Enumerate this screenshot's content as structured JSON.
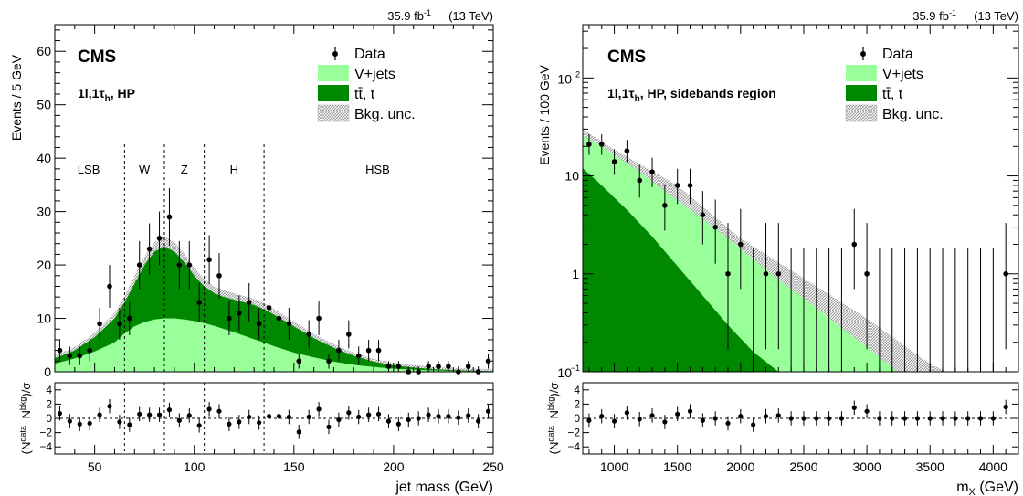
{
  "chart_data": [
    {
      "type": "histogram",
      "panel": "left",
      "lumi_label": "35.9 fb",
      "lumi_sup": "-1",
      "energy_label": "(13 TeV)",
      "experiment": "CMS",
      "category_label": "1l,1τ",
      "category_sub": "h",
      "category_suffix": ", HP",
      "ylabel": "Events / 5 GeV",
      "xlabel": "jet mass (GeV)",
      "ratio_ylabel": "(N",
      "xlim": [
        30,
        250
      ],
      "ylim": [
        0,
        65
      ],
      "x_ticks": [
        50,
        100,
        150,
        200,
        250
      ],
      "y_ticks": [
        0,
        10,
        20,
        30,
        40,
        50,
        60
      ],
      "ratio_ylim": [
        -5,
        5
      ],
      "ratio_ticks": [
        4,
        2,
        0,
        -2,
        -4
      ],
      "legend": {
        "data": "Data",
        "vjets": "V+jets",
        "ttbar": "tt̄, t",
        "unc": "Bkg. unc."
      },
      "region_boundaries": [
        65,
        85,
        105,
        135
      ],
      "regions": [
        {
          "label": "LSB",
          "x": 47
        },
        {
          "label": "W",
          "x": 75
        },
        {
          "label": "Z",
          "x": 95
        },
        {
          "label": "H",
          "x": 120
        },
        {
          "label": "HSB",
          "x": 192
        }
      ],
      "vjets_curve": {
        "x": [
          30,
          40,
          50,
          60,
          65,
          70,
          75,
          80,
          85,
          90,
          95,
          100,
          105,
          110,
          120,
          130,
          140,
          150,
          160,
          170,
          180,
          190,
          200,
          210,
          220,
          230,
          240,
          250
        ],
        "y": [
          1.5,
          2.5,
          3.8,
          5.5,
          7.2,
          8.5,
          9.3,
          9.8,
          10,
          10,
          9.8,
          9.5,
          9.1,
          8.6,
          7.4,
          6.1,
          4.8,
          3.6,
          2.7,
          1.9,
          1.3,
          0.9,
          0.6,
          0.4,
          0.25,
          0.15,
          0.1,
          0.05
        ]
      },
      "total_curve": {
        "x": [
          30,
          40,
          50,
          60,
          65,
          70,
          75,
          80,
          85,
          90,
          95,
          100,
          105,
          110,
          115,
          120,
          125,
          130,
          135,
          140,
          150,
          160,
          170,
          180,
          190,
          200,
          210,
          220,
          230,
          240,
          250
        ],
        "y": [
          2.5,
          4,
          6.5,
          10,
          13,
          16.5,
          20,
          22.5,
          23.5,
          22.5,
          20.5,
          18,
          16,
          14.7,
          14,
          13.5,
          13,
          12.5,
          11.7,
          10.7,
          8.5,
          6.3,
          4.5,
          3,
          1.9,
          1.2,
          0.8,
          0.5,
          0.3,
          0.2,
          0.1
        ]
      },
      "points": {
        "x": [
          32.5,
          37.5,
          42.5,
          47.5,
          52.5,
          57.5,
          62.5,
          67.5,
          72.5,
          77.5,
          82.5,
          87.5,
          92.5,
          97.5,
          102.5,
          107.5,
          112.5,
          117.5,
          122.5,
          127.5,
          132.5,
          137.5,
          142.5,
          147.5,
          152.5,
          157.5,
          162.5,
          167.5,
          172.5,
          177.5,
          182.5,
          187.5,
          192.5,
          197.5,
          202.5,
          207.5,
          212.5,
          217.5,
          222.5,
          227.5,
          232.5,
          237.5,
          242.5,
          247.5
        ],
        "y": [
          4,
          3,
          3,
          4,
          9,
          16,
          9,
          10,
          20,
          23,
          25,
          29,
          20,
          20,
          13,
          21,
          18,
          10,
          11,
          13,
          9,
          12,
          10,
          9,
          2,
          7,
          10,
          2,
          4,
          7,
          3,
          4,
          4,
          1,
          1,
          0,
          0,
          1,
          1,
          1,
          0,
          1,
          0,
          2
        ],
        "ratio": [
          0.7,
          -0.4,
          -0.8,
          -0.7,
          0.5,
          1.7,
          -0.5,
          -0.9,
          0.6,
          0.5,
          0.5,
          1.2,
          -0.3,
          0.4,
          -1.0,
          1.3,
          1.0,
          -0.8,
          -0.5,
          0.2,
          -0.6,
          0.3,
          0.3,
          0.2,
          -1.9,
          0.2,
          1.3,
          -1.2,
          -0.2,
          0.8,
          0.2,
          0.5,
          0.6,
          -0.4,
          -0.8,
          -0.2,
          0.0,
          0.5,
          0.3,
          0.3,
          0.1,
          0.4,
          -0.4,
          1.0
        ]
      }
    },
    {
      "type": "histogram",
      "panel": "right",
      "lumi_label": "35.9 fb",
      "lumi_sup": "-1",
      "energy_label": "(13 TeV)",
      "experiment": "CMS",
      "category_label": "1l,1τ",
      "category_sub": "h",
      "category_suffix": ", HP, sidebands region",
      "ylabel": "Events / 100 GeV",
      "xlabel": "m",
      "xlabel_sub": "X",
      "xlabel_suffix": " (GeV)",
      "xlim": [
        750,
        4200
      ],
      "ylim_log": [
        0.1,
        350
      ],
      "x_ticks": [
        1000,
        1500,
        2000,
        2500,
        3000,
        3500,
        4000
      ],
      "y_ticks_log": [
        {
          "v": 1,
          "label": "1"
        },
        {
          "v": 10,
          "label": "10"
        }
      ],
      "y_tick_pow": [
        {
          "v": 0.1,
          "base": "10",
          "exp": "−1"
        },
        {
          "v": 100,
          "base": "10",
          "exp": "2"
        }
      ],
      "ratio_ylim": [
        -5,
        5
      ],
      "ratio_ticks": [
        4,
        2,
        0,
        -2,
        -4
      ],
      "legend": {
        "data": "Data",
        "vjets": "V+jets",
        "ttbar": "tt̄, t",
        "unc": "Bkg. unc."
      },
      "ttbar_curve": {
        "x": [
          750,
          900,
          1100,
          1300,
          1500,
          1700,
          1900,
          2100,
          2300,
          2500
        ],
        "y": [
          12,
          8,
          4.5,
          2.4,
          1.2,
          0.6,
          0.3,
          0.16,
          0.1,
          0.06
        ]
      },
      "total_curve": {
        "x": [
          750,
          900,
          1000,
          1200,
          1400,
          1600,
          1800,
          2000,
          2200,
          2400,
          2600,
          2800,
          3000,
          3200,
          3400,
          3600,
          3800
        ],
        "y": [
          26,
          20,
          16.5,
          11,
          7,
          4.5,
          2.9,
          1.8,
          1.1,
          0.7,
          0.45,
          0.28,
          0.18,
          0.11,
          0.07,
          0.04,
          0.025
        ]
      },
      "unc_upper_curve": {
        "x": [
          750,
          1000,
          1500,
          2000,
          2500,
          3000,
          3500,
          3800
        ],
        "y": [
          30,
          18.5,
          8,
          2.3,
          0.9,
          0.35,
          0.12,
          0.08
        ]
      },
      "points": {
        "x": [
          800,
          900,
          1000,
          1100,
          1200,
          1300,
          1400,
          1500,
          1600,
          1700,
          1800,
          1900,
          2000,
          2100,
          2200,
          2300,
          2400,
          2500,
          2600,
          2700,
          2800,
          2900,
          3000,
          3100,
          3200,
          3300,
          3400,
          3500,
          3600,
          3700,
          3800,
          3900,
          4000,
          4100
        ],
        "y": [
          21,
          21,
          14,
          18,
          9,
          11,
          5,
          8,
          8,
          4,
          3,
          1,
          2,
          0,
          1,
          1,
          0,
          0,
          0,
          0,
          0,
          2,
          1,
          0,
          0,
          0,
          0,
          0,
          0,
          0,
          0,
          0,
          0,
          1
        ],
        "ratio": [
          -0.3,
          0.3,
          -0.4,
          0.8,
          -0.1,
          0.4,
          -0.5,
          0.6,
          1.0,
          -0.3,
          0.0,
          -0.7,
          0.3,
          -0.9,
          0.3,
          0.4,
          0.0,
          0.0,
          0.0,
          0.0,
          0.0,
          1.5,
          1.0,
          0.0,
          0.0,
          0.0,
          0.0,
          0.0,
          0.0,
          0.0,
          0.0,
          0.0,
          0.0,
          1.6
        ]
      }
    }
  ]
}
